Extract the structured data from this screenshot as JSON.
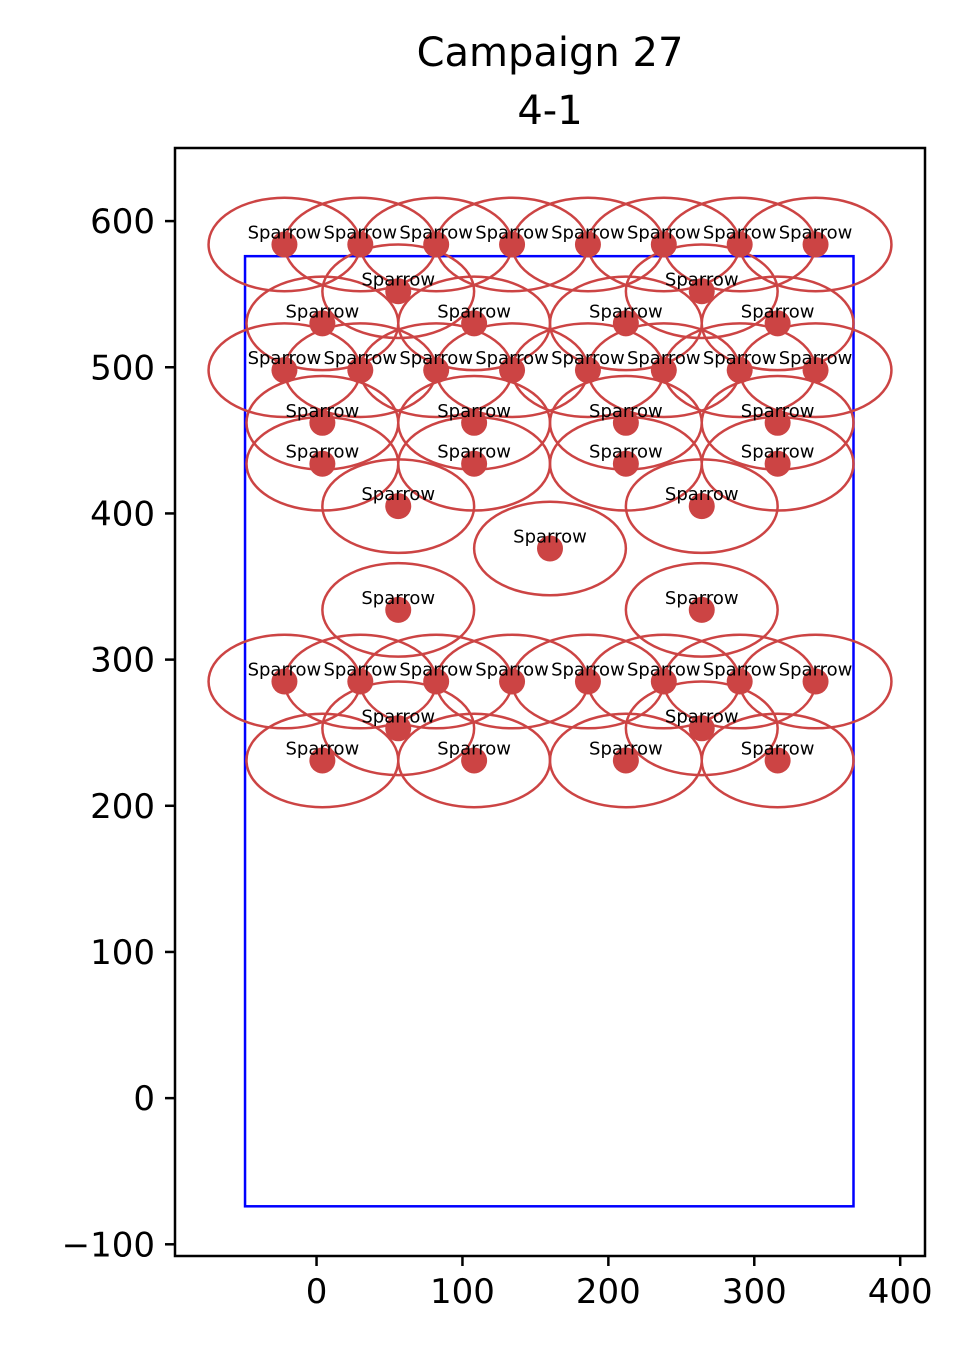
{
  "chart_data": {
    "type": "scatter",
    "title": "Campaign 27",
    "subtitle": "4-1",
    "xlabel": "",
    "ylabel": "",
    "xlim": [
      -97,
      417
    ],
    "ylim": [
      -108,
      650
    ],
    "xticks": [
      0,
      100,
      200,
      300,
      400
    ],
    "xtick_labels": [
      "0",
      "100",
      "200",
      "300",
      "400"
    ],
    "yticks": [
      -100,
      0,
      100,
      200,
      300,
      400,
      500,
      600
    ],
    "ytick_labels": [
      "−100",
      "0",
      "100",
      "200",
      "300",
      "400",
      "500",
      "600"
    ],
    "grid": false,
    "boundary": {
      "x": [
        -49,
        368
      ],
      "y": [
        -74,
        576
      ],
      "color": "#0000ff"
    },
    "marker_color": "#cc4444",
    "ellipse_radius": [
      52,
      32
    ],
    "points": [
      {
        "label": "Sparrow",
        "x": -22,
        "y": 584
      },
      {
        "label": "Sparrow",
        "x": 30,
        "y": 584
      },
      {
        "label": "Sparrow",
        "x": 82,
        "y": 584
      },
      {
        "label": "Sparrow",
        "x": 134,
        "y": 584
      },
      {
        "label": "Sparrow",
        "x": 186,
        "y": 584
      },
      {
        "label": "Sparrow",
        "x": 238,
        "y": 584
      },
      {
        "label": "Sparrow",
        "x": 290,
        "y": 584
      },
      {
        "label": "Sparrow",
        "x": 342,
        "y": 584
      },
      {
        "label": "Sparrow",
        "x": 56,
        "y": 552
      },
      {
        "label": "Sparrow",
        "x": 264,
        "y": 552
      },
      {
        "label": "Sparrow",
        "x": 4,
        "y": 530
      },
      {
        "label": "Sparrow",
        "x": 108,
        "y": 530
      },
      {
        "label": "Sparrow",
        "x": 212,
        "y": 530
      },
      {
        "label": "Sparrow",
        "x": 316,
        "y": 530
      },
      {
        "label": "Sparrow",
        "x": -22,
        "y": 498
      },
      {
        "label": "Sparrow",
        "x": 30,
        "y": 498
      },
      {
        "label": "Sparrow",
        "x": 82,
        "y": 498
      },
      {
        "label": "Sparrow",
        "x": 134,
        "y": 498
      },
      {
        "label": "Sparrow",
        "x": 186,
        "y": 498
      },
      {
        "label": "Sparrow",
        "x": 238,
        "y": 498
      },
      {
        "label": "Sparrow",
        "x": 290,
        "y": 498
      },
      {
        "label": "Sparrow",
        "x": 342,
        "y": 498
      },
      {
        "label": "Sparrow",
        "x": 4,
        "y": 462
      },
      {
        "label": "Sparrow",
        "x": 108,
        "y": 462
      },
      {
        "label": "Sparrow",
        "x": 212,
        "y": 462
      },
      {
        "label": "Sparrow",
        "x": 316,
        "y": 462
      },
      {
        "label": "Sparrow",
        "x": 4,
        "y": 434
      },
      {
        "label": "Sparrow",
        "x": 108,
        "y": 434
      },
      {
        "label": "Sparrow",
        "x": 212,
        "y": 434
      },
      {
        "label": "Sparrow",
        "x": 316,
        "y": 434
      },
      {
        "label": "Sparrow",
        "x": 56,
        "y": 405
      },
      {
        "label": "Sparrow",
        "x": 264,
        "y": 405
      },
      {
        "label": "Sparrow",
        "x": 160,
        "y": 376
      },
      {
        "label": "Sparrow",
        "x": 56,
        "y": 334
      },
      {
        "label": "Sparrow",
        "x": 264,
        "y": 334
      },
      {
        "label": "Sparrow",
        "x": -22,
        "y": 285
      },
      {
        "label": "Sparrow",
        "x": 30,
        "y": 285
      },
      {
        "label": "Sparrow",
        "x": 82,
        "y": 285
      },
      {
        "label": "Sparrow",
        "x": 134,
        "y": 285
      },
      {
        "label": "Sparrow",
        "x": 186,
        "y": 285
      },
      {
        "label": "Sparrow",
        "x": 238,
        "y": 285
      },
      {
        "label": "Sparrow",
        "x": 290,
        "y": 285
      },
      {
        "label": "Sparrow",
        "x": 342,
        "y": 285
      },
      {
        "label": "Sparrow",
        "x": 56,
        "y": 253
      },
      {
        "label": "Sparrow",
        "x": 264,
        "y": 253
      },
      {
        "label": "Sparrow",
        "x": 4,
        "y": 231
      },
      {
        "label": "Sparrow",
        "x": 108,
        "y": 231
      },
      {
        "label": "Sparrow",
        "x": 212,
        "y": 231
      },
      {
        "label": "Sparrow",
        "x": 316,
        "y": 231
      }
    ]
  }
}
